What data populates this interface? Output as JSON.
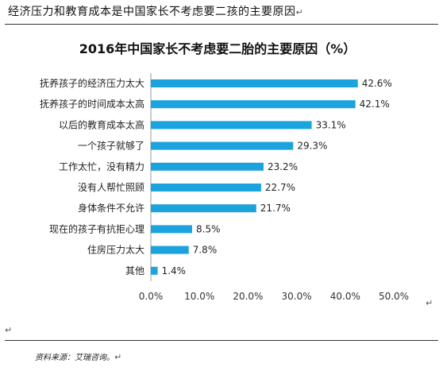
{
  "document": {
    "heading": "经济压力和教育成本是中国家长不考虑要二孩的主要原因",
    "paragraph_mark": "↵",
    "source": "资料来源：艾瑞咨询。"
  },
  "chart_data": {
    "type": "bar",
    "orientation": "horizontal",
    "title": "2016年中国家长不考虑要二胎的主要原因（%）",
    "categories": [
      "抚养孩子的经济压力太大",
      "抚养孩子的时间成本太高",
      "以后的教育成本太高",
      "一个孩子就够了",
      "工作太忙，没有精力",
      "没有人帮忙照顾",
      "身体条件不允许",
      "现在的孩子有抗拒心理",
      "住房压力太大",
      "其他"
    ],
    "values": [
      42.6,
      42.1,
      33.1,
      29.3,
      23.2,
      22.7,
      21.7,
      8.5,
      7.8,
      1.4
    ],
    "value_labels": [
      "42.6%",
      "42.1%",
      "33.1%",
      "29.3%",
      "23.2%",
      "22.7%",
      "21.7%",
      "8.5%",
      "7.8%",
      "1.4%"
    ],
    "xlim": [
      0,
      50
    ],
    "x_ticks": [
      0,
      10,
      20,
      30,
      40,
      50
    ],
    "x_tick_labels": [
      "0.0%",
      "10.0%",
      "20.0%",
      "30.0%",
      "40.0%",
      "50.0%"
    ],
    "bar_color": "#1aa3dc",
    "grid": false,
    "legend": "none"
  }
}
